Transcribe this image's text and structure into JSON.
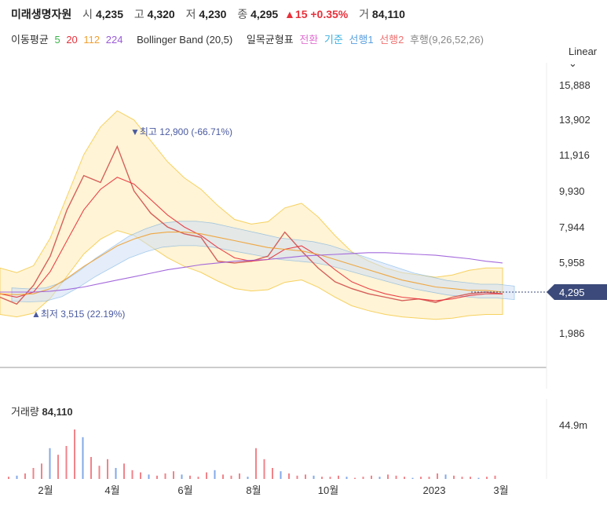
{
  "header": {
    "name": "미래생명자원",
    "open_label": "시",
    "open": "4,235",
    "high_label": "고",
    "high": "4,320",
    "low_label": "저",
    "low": "4,230",
    "close_label": "종",
    "close": "4,295",
    "change": "▲15 +0.35%",
    "volume_label": "거",
    "volume": "84,110"
  },
  "indicators": {
    "ma_label": "이동평균",
    "ma5": "5",
    "ma20": "20",
    "ma112": "112",
    "ma224": "224",
    "bb": "Bollinger Band (20,5)",
    "ichimoku_label": "일목균형표",
    "tenkan": "전환",
    "kijun": "기준",
    "span1": "선행1",
    "span2": "선행2",
    "chikou": "후행(9,26,52,26)"
  },
  "scale_selector": "Linear ⌄",
  "colors": {
    "up": "#e8303a",
    "down": "#2e6fd8",
    "ma5": "#3ab54a",
    "ma20": "#e8303a",
    "ma112": "#f0a030",
    "ma224": "#9a5ad8",
    "bb": "#f5c945",
    "tenkan": "#e070d0",
    "kijun": "#3ab0e0",
    "span1": "#5aa0e0",
    "span2": "#f07070",
    "chikou": "#aaaaaa",
    "price_tag": "#3b4a7a"
  },
  "chart_data": [
    {
      "type": "line",
      "y_axis_ticks": [
        "15,888",
        "13,902",
        "11,916",
        "9,930",
        "7,944",
        "5,958",
        "1,986"
      ],
      "ylim": [
        0,
        16500
      ],
      "x_axis_ticks": [
        "2월",
        "4월",
        "6월",
        "8월",
        "10월",
        "2023",
        "3월"
      ],
      "current_price_label": "4,295",
      "annotations": {
        "max": "▼최고 12,900 (-66.71%)",
        "min": "▲최저 3,515 (22.19%)"
      },
      "series": [
        {
          "name": "종가",
          "values": [
            4100,
            3700,
            4800,
            6500,
            9200,
            11200,
            10800,
            12900,
            10300,
            9000,
            8200,
            7800,
            7600,
            6200,
            6100,
            6200,
            6500,
            7900,
            6800,
            5800,
            5000,
            4600,
            4300,
            4100,
            3900,
            4000,
            3800,
            4100,
            4300,
            4400,
            4295
          ]
        },
        {
          "name": "20",
          "values": [
            4300,
            4100,
            4400,
            5600,
            7400,
            9200,
            10400,
            11100,
            10700,
            9800,
            8900,
            8200,
            7700,
            7000,
            6400,
            6200,
            6300,
            6900,
            7100,
            6500,
            5700,
            5000,
            4600,
            4300,
            4100,
            4000,
            3900,
            4000,
            4200,
            4300,
            4300
          ]
        },
        {
          "name": "112",
          "values": [
            4300,
            4250,
            4300,
            4600,
            5200,
            5900,
            6500,
            7100,
            7500,
            7800,
            7900,
            7900,
            7800,
            7600,
            7400,
            7200,
            7000,
            6900,
            6800,
            6600,
            6300,
            6000,
            5700,
            5400,
            5100,
            4900,
            4700,
            4600,
            4500,
            4500,
            4400
          ]
        },
        {
          "name": "224",
          "values": [
            4400,
            4400,
            4400,
            4450,
            4550,
            4700,
            4900,
            5100,
            5300,
            5500,
            5700,
            5850,
            6000,
            6100,
            6200,
            6250,
            6300,
            6400,
            6500,
            6550,
            6600,
            6650,
            6700,
            6700,
            6650,
            6600,
            6550,
            6450,
            6350,
            6200,
            6100
          ]
        }
      ]
    },
    {
      "type": "bar",
      "title": "거래량",
      "title_value": "84,110",
      "y_axis_ticks": [
        "44.9m"
      ],
      "ylim": [
        0,
        50
      ],
      "values": [
        2,
        3,
        5,
        10,
        14,
        28,
        22,
        30,
        45,
        38,
        20,
        12,
        18,
        10,
        14,
        8,
        6,
        4,
        3,
        5,
        7,
        4,
        3,
        2,
        6,
        8,
        4,
        3,
        5,
        2,
        28,
        18,
        10,
        7,
        5,
        3,
        4,
        3,
        2,
        2,
        3,
        2,
        1,
        2,
        3,
        2,
        4,
        3,
        2,
        1,
        2,
        2,
        5,
        4,
        3,
        2,
        2,
        1,
        2,
        3
      ]
    }
  ]
}
